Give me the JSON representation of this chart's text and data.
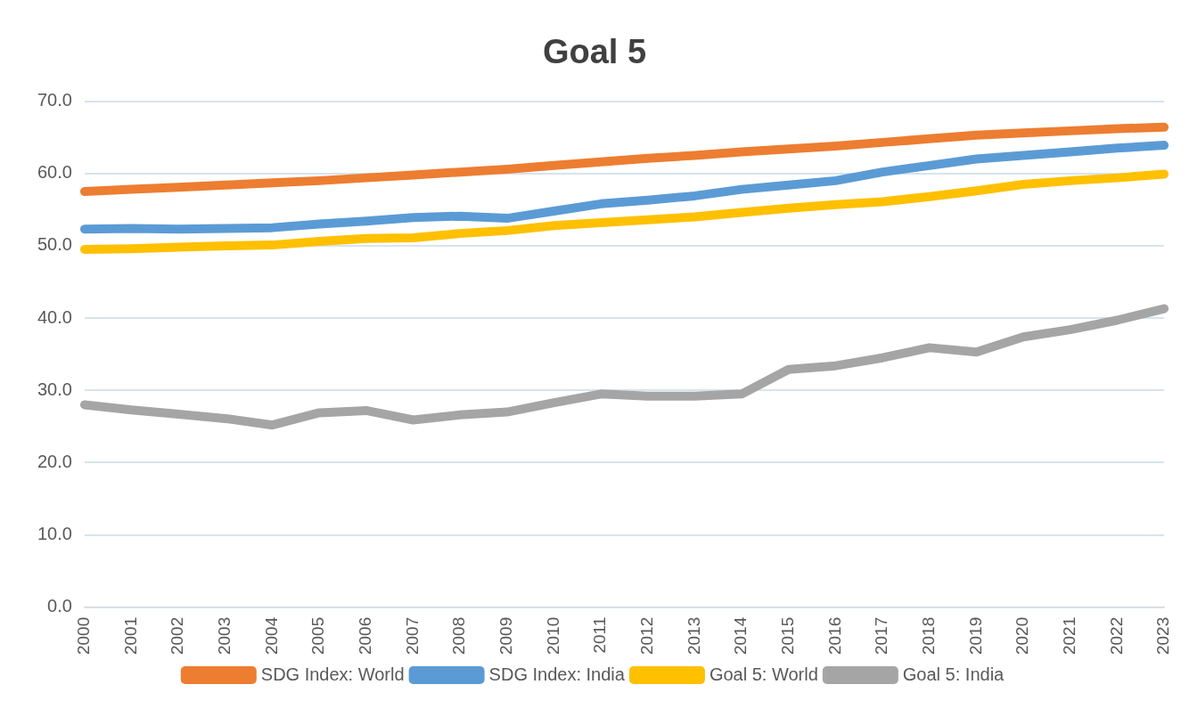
{
  "chart_data": {
    "type": "line",
    "title": "Goal 5",
    "categories": [
      "2000",
      "2001",
      "2002",
      "2003",
      "2004",
      "2005",
      "2006",
      "2007",
      "2008",
      "2009",
      "2010",
      "2011",
      "2012",
      "2013",
      "2014",
      "2015",
      "2016",
      "2017",
      "2018",
      "2019",
      "2020",
      "2021",
      "2022",
      "2023"
    ],
    "series": [
      {
        "name": "SDG Index: World",
        "color": "#ed7d31",
        "values": [
          57.5,
          57.8,
          58.1,
          58.4,
          58.7,
          59.0,
          59.4,
          59.8,
          60.2,
          60.6,
          61.1,
          61.6,
          62.1,
          62.5,
          63.0,
          63.4,
          63.8,
          64.3,
          64.8,
          65.3,
          65.6,
          65.9,
          66.2,
          66.4
        ]
      },
      {
        "name": "SDG Index: India",
        "color": "#5b9bd5",
        "values": [
          52.3,
          52.4,
          52.3,
          52.4,
          52.5,
          53.0,
          53.4,
          53.9,
          54.1,
          53.8,
          54.8,
          55.8,
          56.3,
          56.9,
          57.8,
          58.4,
          59.0,
          60.2,
          61.1,
          62.0,
          62.5,
          63.0,
          63.5,
          63.9
        ]
      },
      {
        "name": "Goal 5: World",
        "color": "#ffc000",
        "values": [
          49.5,
          49.6,
          49.8,
          50.0,
          50.1,
          50.6,
          51.0,
          51.1,
          51.7,
          52.1,
          52.8,
          53.2,
          53.6,
          54.0,
          54.6,
          55.2,
          55.7,
          56.1,
          56.8,
          57.6,
          58.5,
          59.0,
          59.4,
          59.9
        ]
      },
      {
        "name": "Goal 5: India",
        "color": "#a5a5a5",
        "values": [
          28.0,
          27.3,
          26.7,
          26.1,
          25.2,
          26.9,
          27.2,
          25.9,
          26.6,
          27.0,
          28.3,
          29.5,
          29.2,
          29.2,
          29.5,
          32.9,
          33.4,
          34.5,
          35.9,
          35.3,
          37.4,
          38.4,
          39.7,
          41.3
        ]
      }
    ],
    "ylim": [
      0,
      70
    ],
    "yticks": [
      {
        "value": 0,
        "label": "0.0"
      },
      {
        "value": 10,
        "label": "10.0"
      },
      {
        "value": 20,
        "label": "20.0"
      },
      {
        "value": 30,
        "label": "30.0"
      },
      {
        "value": 40,
        "label": "40.0"
      },
      {
        "value": 50,
        "label": "50.0"
      },
      {
        "value": 60,
        "label": "60.0"
      },
      {
        "value": 70,
        "label": "70.0"
      }
    ],
    "grid": "y",
    "legend": "bottom",
    "marker": "none",
    "line_style": "solid"
  }
}
